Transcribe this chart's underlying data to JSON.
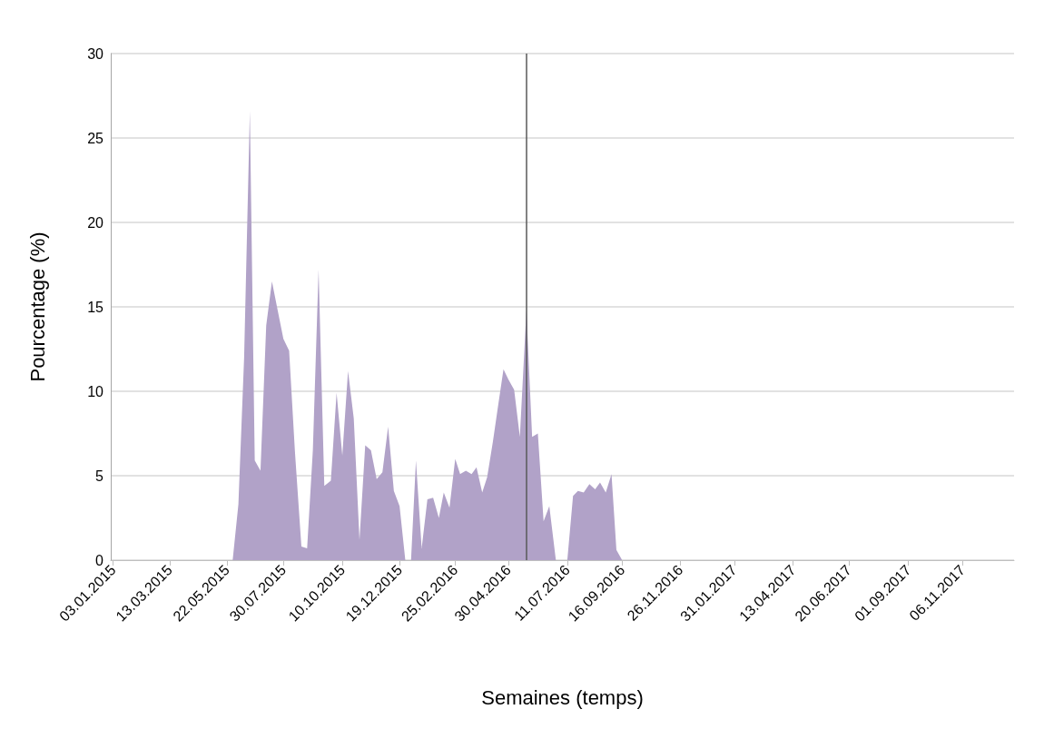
{
  "chart_data": {
    "type": "area",
    "xlabel": "Semaines (temps)",
    "ylabel": "Pourcentage (%)",
    "x": [
      "2015-05-29",
      "2015-06-05",
      "2015-06-12",
      "2015-06-19",
      "2015-06-25",
      "2015-07-02",
      "2015-07-09",
      "2015-07-16",
      "2015-07-23",
      "2015-07-30",
      "2015-08-06",
      "2015-08-13",
      "2015-08-21",
      "2015-08-28",
      "2015-09-04",
      "2015-09-11",
      "2015-09-18",
      "2015-09-26",
      "2015-10-03",
      "2015-10-10",
      "2015-10-17",
      "2015-10-24",
      "2015-10-31",
      "2015-11-07",
      "2015-11-14",
      "2015-11-21",
      "2015-11-28",
      "2015-12-05",
      "2015-12-12",
      "2015-12-19",
      "2015-12-26",
      "2016-01-02",
      "2016-01-08",
      "2016-01-15",
      "2016-01-22",
      "2016-01-29",
      "2016-02-05",
      "2016-02-11",
      "2016-02-18",
      "2016-02-25",
      "2016-03-02",
      "2016-03-09",
      "2016-03-16",
      "2016-03-22",
      "2016-03-29",
      "2016-04-04",
      "2016-04-11",
      "2016-04-17",
      "2016-04-24",
      "2016-04-30",
      "2016-05-07",
      "2016-05-14",
      "2016-05-22",
      "2016-05-29",
      "2016-06-05",
      "2016-06-12",
      "2016-06-19",
      "2016-06-27",
      "2016-07-04",
      "2016-07-11",
      "2016-07-18",
      "2016-07-24",
      "2016-07-31",
      "2016-08-07",
      "2016-08-14",
      "2016-08-20",
      "2016-08-27",
      "2016-09-03",
      "2016-09-09",
      "2016-09-16"
    ],
    "series": [
      {
        "color": "#b1a2c8",
        "values": [
          0,
          3.3,
          12,
          26.6,
          5.9,
          5.3,
          13.9,
          16.5,
          14.8,
          13.1,
          12.4,
          6.5,
          0.8,
          0.7,
          6.5,
          17.2,
          4.4,
          4.7,
          9.9,
          6.2,
          11.2,
          8.4,
          1.2,
          6.8,
          6.5,
          4.8,
          5.2,
          7.9,
          4.1,
          3.2,
          0,
          0,
          5.9,
          0.7,
          3.6,
          3.7,
          2.5,
          4.0,
          3.1,
          6.0,
          5.1,
          5.3,
          5.1,
          5.5,
          4.0,
          4.9,
          7.0,
          9.0,
          11.3,
          10.7,
          10.1,
          7.3,
          14.8,
          7.3,
          7.5,
          2.3,
          3.2,
          0,
          0,
          0,
          3.8,
          4.1,
          4.0,
          4.5,
          4.2,
          4.6,
          4.0,
          5.1,
          0.6,
          0
        ]
      }
    ],
    "xlim": [
      "2014-12-31",
      "2018-01-08"
    ],
    "xticks": [
      {
        "value": "2015-01-03",
        "label": "03.01.2015"
      },
      {
        "value": "2015-03-13",
        "label": "13.03.2015"
      },
      {
        "value": "2015-05-22",
        "label": "22.05.2015"
      },
      {
        "value": "2015-07-30",
        "label": "30.07.2015"
      },
      {
        "value": "2015-10-10",
        "label": "10.10.2015"
      },
      {
        "value": "2015-12-19",
        "label": "19.12.2015"
      },
      {
        "value": "2016-02-25",
        "label": "25.02.2016"
      },
      {
        "value": "2016-04-30",
        "label": "30.04.2016"
      },
      {
        "value": "2016-07-11",
        "label": "11.07.2016"
      },
      {
        "value": "2016-09-16",
        "label": "16.09.2016"
      },
      {
        "value": "2016-11-26",
        "label": "26.11.2016"
      },
      {
        "value": "2017-01-31",
        "label": "31.01.2017"
      },
      {
        "value": "2017-04-13",
        "label": "13.04.2017"
      },
      {
        "value": "2017-06-20",
        "label": "20.06.2017"
      },
      {
        "value": "2017-09-01",
        "label": "01.09.2017"
      },
      {
        "value": "2017-11-06",
        "label": "06.11.2017"
      }
    ],
    "ylim": [
      0,
      30
    ],
    "yticks": [
      0,
      5,
      10,
      15,
      20,
      25,
      30
    ],
    "grid": "y",
    "ref_lines": [
      {
        "axis": "x",
        "value": "2016-05-22",
        "color": "#595959",
        "line_style": "solid"
      }
    ]
  }
}
